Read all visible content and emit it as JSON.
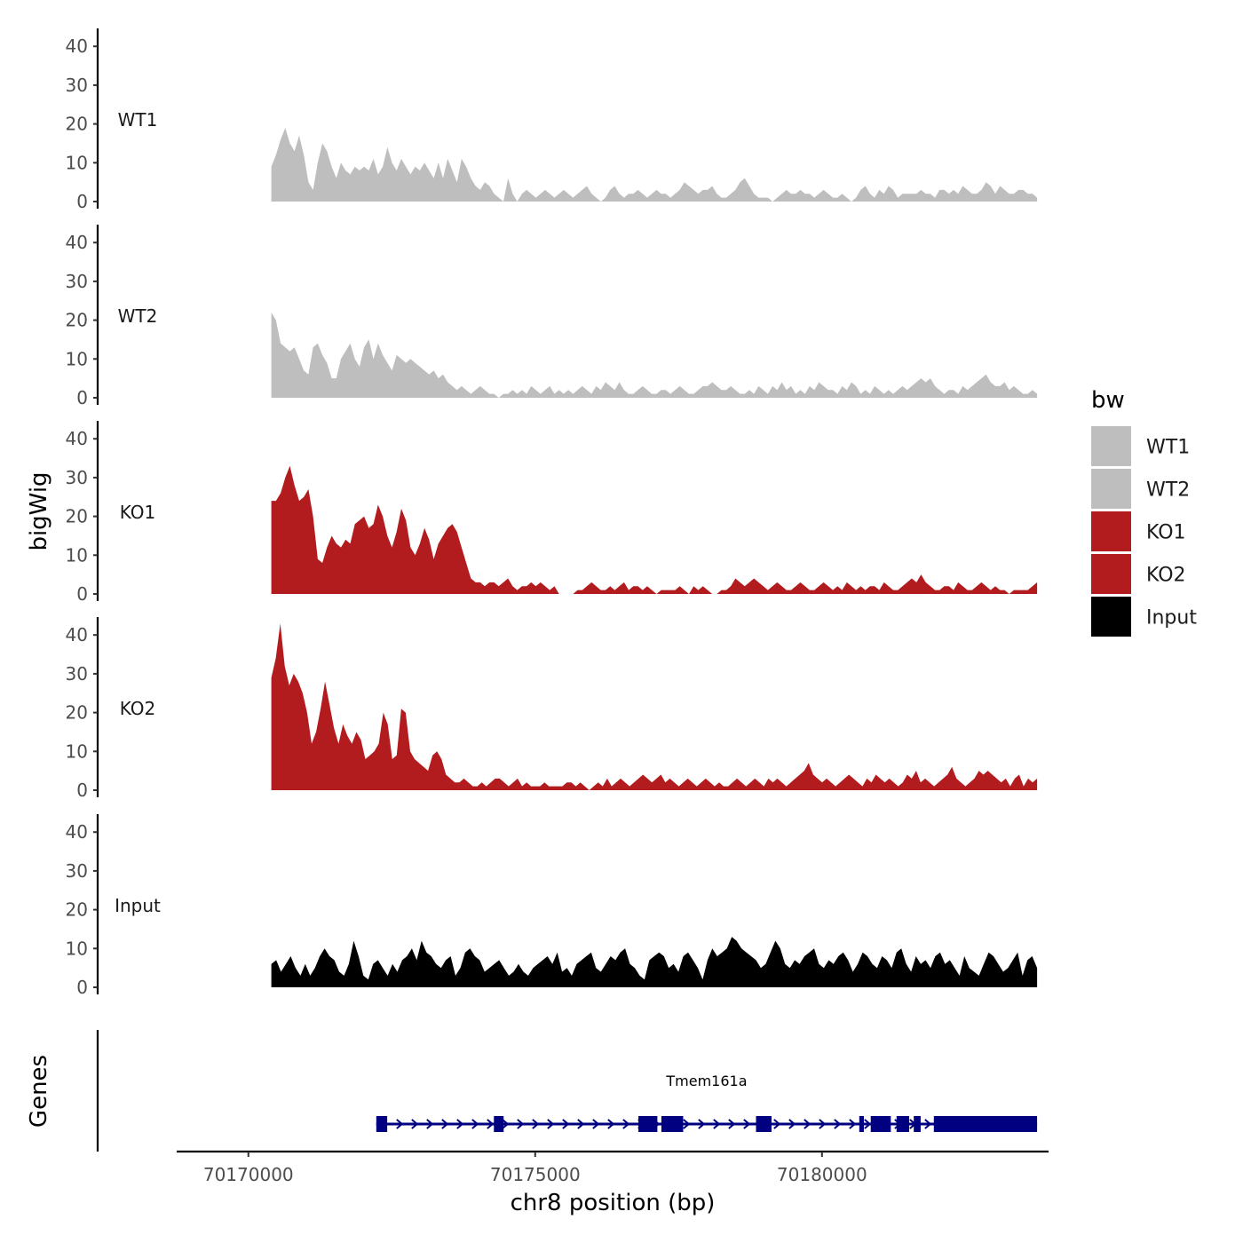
{
  "chart_data": {
    "type": "area",
    "ylabel": "bigWig",
    "xlabel": "chr8 position (bp)",
    "y_ticks": [
      0,
      10,
      20,
      30,
      40
    ],
    "ylim": [
      0,
      45
    ],
    "xlim": [
      70168750,
      70183950
    ],
    "x_ticks": [
      70170000,
      70175000,
      70180000
    ],
    "x_tick_labels": [
      "70170000",
      "70175000",
      "70180000"
    ],
    "signal_range": [
      70170400,
      70183750
    ],
    "genes_label": "Genes",
    "legend": {
      "title": "bw",
      "entries": [
        {
          "label": "WT1",
          "color": "#bebebe"
        },
        {
          "label": "WT2",
          "color": "#bebebe"
        },
        {
          "label": "KO1",
          "color": "#b21c1f"
        },
        {
          "label": "KO2",
          "color": "#b21c1f"
        },
        {
          "label": "Input",
          "color": "#000000"
        }
      ]
    },
    "series": [
      {
        "name": "WT1",
        "color": "#bebebe",
        "values": [
          9,
          12,
          16,
          19,
          15,
          13,
          17,
          12,
          5,
          3,
          10,
          15,
          13,
          9,
          6,
          10,
          8,
          7,
          9,
          8,
          9,
          8,
          11,
          7,
          9,
          14,
          10,
          8,
          11,
          9,
          7,
          9,
          8,
          10,
          8,
          6,
          10,
          6,
          11,
          8,
          5,
          11,
          9,
          6,
          4,
          3,
          5,
          4,
          2,
          1,
          0,
          6,
          2,
          0,
          2,
          3,
          2,
          1,
          2,
          3,
          2,
          1,
          2,
          3,
          2,
          1,
          2,
          3,
          4,
          2,
          1,
          0,
          1,
          3,
          4,
          2,
          1,
          2,
          2,
          3,
          2,
          1,
          2,
          3,
          2,
          2,
          1,
          2,
          3,
          5,
          4,
          3,
          2,
          3,
          3,
          4,
          2,
          1,
          1,
          2,
          3,
          5,
          6,
          4,
          2,
          1,
          1,
          1,
          0,
          1,
          2,
          3,
          2,
          2,
          3,
          2,
          2,
          1,
          2,
          3,
          2,
          1,
          1,
          2,
          1,
          0,
          1,
          3,
          4,
          2,
          1,
          3,
          2,
          4,
          3,
          1,
          2,
          2,
          2,
          2,
          3,
          2,
          2,
          1,
          3,
          3,
          2,
          3,
          2,
          4,
          3,
          2,
          2,
          3,
          5,
          4,
          2,
          4,
          3,
          2,
          2,
          3,
          3,
          2,
          2,
          1
        ]
      },
      {
        "name": "WT2",
        "color": "#bebebe",
        "values": [
          22,
          20,
          14,
          13,
          12,
          13,
          10,
          7,
          6,
          13,
          14,
          11,
          9,
          5,
          5,
          10,
          12,
          14,
          10,
          8,
          13,
          15,
          10,
          14,
          11,
          9,
          7,
          11,
          10,
          9,
          10,
          9,
          8,
          7,
          6,
          7,
          5,
          6,
          4,
          3,
          2,
          3,
          2,
          1,
          2,
          3,
          2,
          1,
          1,
          0,
          1,
          1,
          2,
          1,
          2,
          1,
          3,
          2,
          1,
          2,
          3,
          1,
          2,
          1,
          2,
          1,
          2,
          3,
          2,
          1,
          3,
          2,
          4,
          3,
          2,
          4,
          2,
          1,
          1,
          2,
          3,
          2,
          1,
          1,
          2,
          2,
          1,
          2,
          3,
          2,
          1,
          1,
          2,
          3,
          3,
          4,
          3,
          2,
          2,
          3,
          2,
          1,
          1,
          2,
          1,
          3,
          2,
          1,
          3,
          2,
          4,
          2,
          3,
          1,
          2,
          1,
          3,
          2,
          4,
          3,
          2,
          2,
          1,
          3,
          2,
          4,
          3,
          1,
          2,
          1,
          3,
          2,
          1,
          2,
          1,
          2,
          3,
          2,
          3,
          4,
          5,
          4,
          5,
          3,
          2,
          1,
          2,
          2,
          1,
          3,
          2,
          3,
          4,
          5,
          6,
          4,
          3,
          3,
          4,
          2,
          3,
          2,
          1,
          1,
          2,
          1
        ]
      },
      {
        "name": "KO1",
        "color": "#b21c1f",
        "values": [
          24,
          24,
          26,
          30,
          33,
          28,
          24,
          25,
          27,
          20,
          9,
          8,
          12,
          15,
          13,
          12,
          14,
          13,
          18,
          19,
          20,
          17,
          18,
          23,
          20,
          15,
          12,
          16,
          22,
          19,
          12,
          10,
          13,
          17,
          14,
          9,
          13,
          15,
          17,
          18,
          16,
          12,
          8,
          4,
          3,
          3,
          2,
          3,
          3,
          2,
          3,
          4,
          2,
          1,
          2,
          2,
          3,
          2,
          3,
          2,
          1,
          2,
          0,
          0,
          0,
          0,
          1,
          1,
          2,
          3,
          2,
          1,
          1,
          2,
          1,
          2,
          3,
          1,
          2,
          2,
          1,
          2,
          1,
          0,
          1,
          1,
          1,
          1,
          2,
          1,
          0,
          2,
          1,
          2,
          1,
          0,
          0,
          1,
          1,
          2,
          4,
          3,
          2,
          3,
          4,
          3,
          2,
          1,
          2,
          3,
          2,
          1,
          1,
          2,
          3,
          2,
          1,
          1,
          2,
          3,
          2,
          1,
          2,
          1,
          3,
          2,
          1,
          2,
          1,
          2,
          2,
          1,
          3,
          2,
          1,
          1,
          2,
          3,
          4,
          3,
          5,
          3,
          2,
          1,
          1,
          2,
          2,
          1,
          3,
          2,
          1,
          1,
          2,
          3,
          2,
          1,
          2,
          1,
          1,
          0,
          1,
          1,
          1,
          1,
          2,
          3
        ]
      },
      {
        "name": "KO2",
        "color": "#b21c1f",
        "values": [
          29,
          34,
          43,
          32,
          27,
          30,
          28,
          25,
          20,
          12,
          15,
          21,
          28,
          22,
          16,
          12,
          17,
          14,
          12,
          15,
          13,
          8,
          9,
          10,
          12,
          20,
          17,
          8,
          9,
          21,
          20,
          10,
          8,
          7,
          6,
          5,
          9,
          10,
          8,
          4,
          3,
          2,
          2,
          3,
          2,
          1,
          1,
          2,
          1,
          2,
          3,
          3,
          2,
          1,
          2,
          3,
          1,
          2,
          1,
          1,
          1,
          2,
          1,
          1,
          1,
          1,
          2,
          2,
          1,
          2,
          1,
          0,
          1,
          2,
          1,
          3,
          1,
          2,
          3,
          2,
          1,
          2,
          3,
          4,
          3,
          2,
          3,
          4,
          2,
          3,
          2,
          1,
          2,
          3,
          2,
          1,
          2,
          3,
          2,
          1,
          2,
          1,
          1,
          2,
          3,
          2,
          1,
          2,
          3,
          2,
          1,
          3,
          2,
          3,
          2,
          1,
          2,
          3,
          4,
          5,
          7,
          4,
          3,
          2,
          3,
          2,
          1,
          2,
          3,
          4,
          3,
          2,
          1,
          3,
          2,
          4,
          3,
          2,
          3,
          2,
          1,
          2,
          4,
          3,
          5,
          2,
          3,
          2,
          1,
          2,
          3,
          4,
          6,
          3,
          2,
          1,
          2,
          3,
          5,
          4,
          5,
          4,
          3,
          2,
          3,
          1,
          3,
          4,
          1,
          3,
          2,
          3
        ]
      },
      {
        "name": "Input",
        "color": "#000000",
        "values": [
          6,
          7,
          4,
          6,
          8,
          5,
          3,
          6,
          3,
          5,
          8,
          10,
          8,
          7,
          4,
          3,
          6,
          12,
          8,
          3,
          2,
          6,
          7,
          5,
          3,
          6,
          4,
          7,
          8,
          10,
          7,
          12,
          9,
          8,
          6,
          5,
          7,
          8,
          3,
          5,
          9,
          10,
          8,
          7,
          4,
          5,
          6,
          7,
          5,
          3,
          4,
          6,
          4,
          3,
          5,
          6,
          7,
          8,
          6,
          9,
          4,
          5,
          3,
          6,
          7,
          8,
          9,
          5,
          4,
          6,
          8,
          7,
          9,
          10,
          6,
          5,
          3,
          2,
          7,
          8,
          9,
          8,
          5,
          6,
          4,
          8,
          9,
          7,
          5,
          2,
          7,
          10,
          8,
          9,
          10,
          13,
          12,
          10,
          9,
          8,
          7,
          5,
          6,
          9,
          12,
          10,
          6,
          5,
          7,
          6,
          8,
          9,
          10,
          6,
          5,
          7,
          6,
          8,
          9,
          7,
          4,
          6,
          9,
          8,
          6,
          5,
          8,
          7,
          5,
          9,
          10,
          6,
          4,
          8,
          6,
          7,
          5,
          8,
          9,
          6,
          7,
          5,
          3,
          8,
          5,
          4,
          3,
          6,
          9,
          8,
          6,
          4,
          5,
          7,
          9,
          3,
          7,
          8,
          5
        ]
      }
    ],
    "genes": [
      {
        "name": "Tmem161a",
        "start": 70172230,
        "end": 70183750,
        "direction": "+",
        "exons": [
          [
            70172230,
            70172420
          ],
          [
            70174280,
            70174450
          ],
          [
            70176800,
            70177130
          ],
          [
            70177200,
            70177580
          ],
          [
            70178850,
            70179120
          ],
          [
            70180650,
            70180730
          ],
          [
            70180850,
            70181200
          ],
          [
            70181300,
            70181520
          ],
          [
            70181600,
            70181720
          ],
          [
            70181950,
            70183750
          ]
        ]
      }
    ]
  }
}
